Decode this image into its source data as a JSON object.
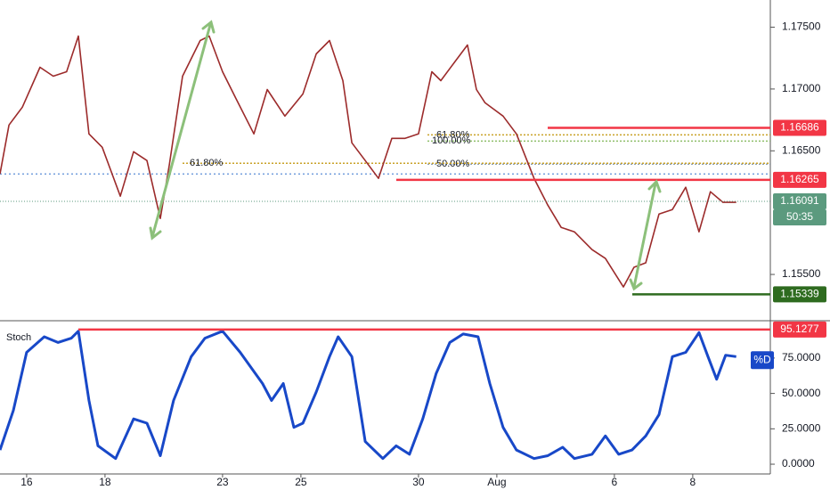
{
  "chart_data": [
    {
      "type": "line",
      "color": "#9c2b2b",
      "x": [
        -0.68,
        -0.45,
        -0.11,
        0.34,
        0.68,
        1.02,
        1.32,
        1.59,
        1.93,
        2.39,
        2.73,
        3.07,
        3.41,
        3.64,
        3.98,
        4.43,
        4.66,
        5,
        5.34,
        5.8,
        6.14,
        6.59,
        7.05,
        7.39,
        7.73,
        8.07,
        8.3,
        8.64,
        8.98,
        9.32,
        9.66,
        10,
        10.34,
        10.57,
        10.91,
        11.25,
        11.48,
        11.7,
        12.16,
        12.5,
        12.95,
        13.3,
        13.64,
        13.98,
        14.43,
        14.77,
        15.23,
        15.5,
        15.8,
        16.14,
        16.48,
        16.82,
        17.16,
        17.45,
        17.77,
        18.11
      ],
      "values": [
        1.16313,
        1.16709,
        1.16853,
        1.17176,
        1.17104,
        1.1714,
        1.17428,
        1.16637,
        1.16529,
        1.16133,
        1.16493,
        1.16421,
        1.15953,
        1.16385,
        1.17104,
        1.17392,
        1.17428,
        1.1714,
        1.16924,
        1.16637,
        1.16996,
        1.16781,
        1.1696,
        1.17284,
        1.17392,
        1.17068,
        1.16565,
        1.16421,
        1.16277,
        1.16601,
        1.16601,
        1.16637,
        1.1714,
        1.17068,
        1.17212,
        1.17356,
        1.16996,
        1.16888,
        1.16781,
        1.16637,
        1.16277,
        1.16061,
        1.15881,
        1.15845,
        1.15701,
        1.15629,
        1.15399,
        1.15558,
        1.15594,
        1.15989,
        1.16025,
        1.16205,
        1.15845,
        1.16169,
        1.16083,
        1.16083
      ],
      "xlim": [
        -0.68,
        18.98
      ],
      "ylim": [
        1.1514,
        1.1772
      ],
      "xticks": [
        {
          "value": 0,
          "label": "16"
        },
        {
          "value": 2,
          "label": "18"
        },
        {
          "value": 5,
          "label": "23"
        },
        {
          "value": 7,
          "label": "25"
        },
        {
          "value": 10,
          "label": "30"
        },
        {
          "value": 12,
          "label": "Aug"
        },
        {
          "value": 15,
          "label": "6"
        },
        {
          "value": 17,
          "label": "8"
        }
      ],
      "yticks": [
        {
          "value": 1.175,
          "label": "1.17500"
        },
        {
          "value": 1.17,
          "label": "1.17000"
        },
        {
          "value": 1.165,
          "label": "1.16500"
        },
        {
          "value": 1.155,
          "label": "1.15500"
        }
      ],
      "levels": [
        {
          "value": 1.16686,
          "color": "#f23645"
        },
        {
          "value": 1.16265,
          "color": "#f23645"
        },
        {
          "value": 1.15339,
          "color": "#2e6b1f"
        },
        {
          "value": 1.16091,
          "color": "#5b9a7e"
        }
      ],
      "countdown": "50:35",
      "fib_levels": [
        {
          "value": 1.16629,
          "label": "61.80%",
          "color": "#c9a227"
        },
        {
          "value": 1.16579,
          "label": "100.00%",
          "color": "#8fbf6a"
        },
        {
          "value": 1.16392,
          "label": "50.00%",
          "color": "#8fa0b0"
        },
        {
          "value": 1.16399,
          "label": "61.80%",
          "color": "#c9a227"
        }
      ],
      "support_line": 1.16313
    },
    {
      "type": "line",
      "title": "Stoch",
      "series": [
        {
          "name": "%D",
          "color": "#1848c8",
          "x": [
            -0.68,
            -0.34,
            0,
            0.45,
            0.8,
            1.14,
            1.32,
            1.59,
            1.82,
            2.27,
            2.73,
            3.07,
            3.41,
            3.75,
            4.2,
            4.55,
            5,
            5.45,
            6.02,
            6.25,
            6.55,
            6.82,
            7.05,
            7.39,
            7.73,
            7.95,
            8.3,
            8.64,
            9.09,
            9.43,
            9.77,
            10.11,
            10.45,
            10.8,
            11.14,
            11.52,
            11.82,
            12.16,
            12.5,
            12.95,
            13.3,
            13.68,
            13.98,
            14.43,
            14.77,
            15.11,
            15.45,
            15.8,
            16.14,
            16.48,
            16.82,
            17.16,
            17.39,
            17.61,
            17.84,
            18.11
          ],
          "values": [
            10,
            38,
            79,
            90,
            86,
            89,
            94,
            45,
            13,
            4,
            32,
            29,
            6,
            45,
            76,
            89,
            94,
            79,
            57,
            45,
            57,
            26,
            29,
            51,
            76,
            90,
            76,
            16,
            4,
            13,
            7,
            32,
            64,
            86,
            92,
            90,
            57,
            26,
            10,
            4,
            6,
            12,
            4,
            7,
            20,
            7,
            10,
            20,
            35,
            76,
            79,
            93,
            76,
            60,
            77,
            76
          ]
        }
      ],
      "xlim": [
        -0.68,
        18.98
      ],
      "ylim": [
        -6.9,
        100.1
      ],
      "yticks": [
        {
          "value": 0,
          "label": "0.0000"
        },
        {
          "value": 25,
          "label": "25.0000"
        },
        {
          "value": 50,
          "label": "50.0000"
        },
        {
          "value": 75,
          "label": "75.0000"
        }
      ],
      "levels": [
        {
          "value": 95.1277,
          "color": "#f23645"
        }
      ]
    }
  ]
}
